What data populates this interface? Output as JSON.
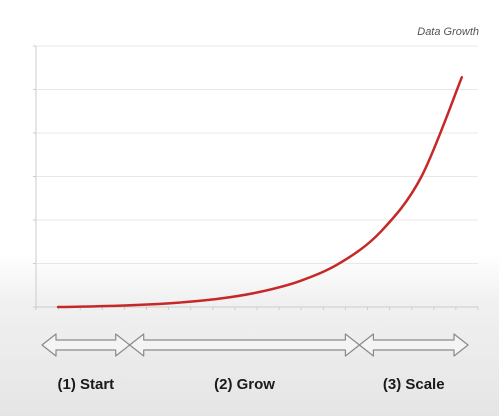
{
  "slide": {
    "title": "Data Growth"
  },
  "chart_data": {
    "type": "line",
    "title": "Data Growth",
    "xlabel": "",
    "ylabel": "",
    "x": [
      0,
      1,
      2,
      3,
      4,
      5,
      6,
      7,
      8,
      9,
      10
    ],
    "series": [
      {
        "values": [
          0,
          0.3,
          0.8,
          1.7,
          3.2,
          5.8,
          10,
          17,
          29,
          50,
          88
        ]
      }
    ],
    "ylim": [
      0,
      100
    ],
    "grid": true,
    "line_color": "#c62828",
    "phases": [
      {
        "label": "(1) Start",
        "from": 0,
        "to": 2.1
      },
      {
        "label": "(2) Grow",
        "from": 2.1,
        "to": 7.6
      },
      {
        "label": "(3) Scale",
        "from": 7.6,
        "to": 10.2
      }
    ]
  },
  "colors": {
    "curve": "#c62828",
    "arrow_fill": "#f4f4f4",
    "arrow_stroke": "#8a8a8a",
    "grid": "#e8e8e8",
    "axis": "#cccccc"
  }
}
